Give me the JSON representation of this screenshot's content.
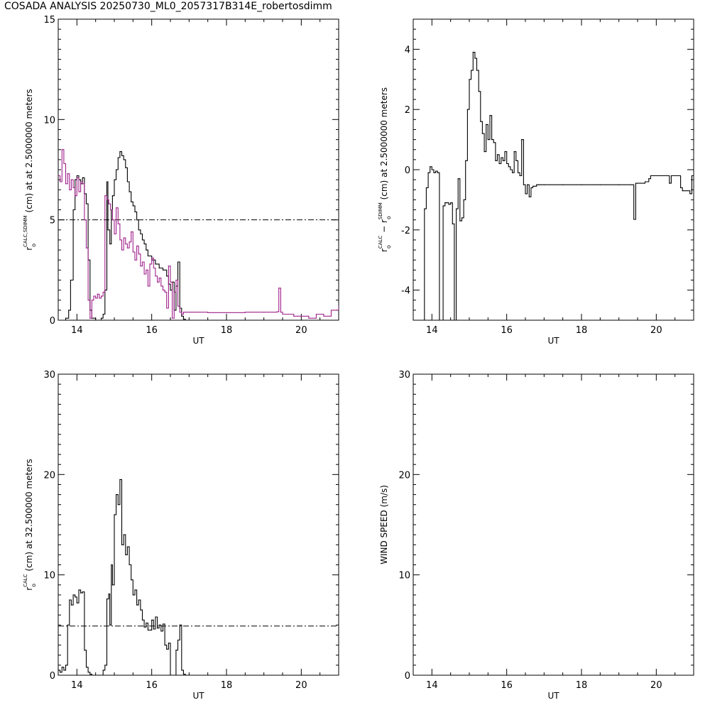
{
  "page": {
    "title": "COSADA ANALYSIS 20250730_ML0_2057317B314E_robertosdimm"
  },
  "colors": {
    "axis": "#000000",
    "series_black": "#000000",
    "series_magenta": "#a0208a"
  },
  "chart_data": [
    {
      "id": "panel-1",
      "type": "line",
      "xlabel": "UT",
      "ylabel_parts": [
        "r",
        "o",
        "CALC,SDIMM",
        " (cm) at  at 2.5000000 meters"
      ],
      "xlim": [
        13.5,
        21.0
      ],
      "ylim": [
        0,
        15
      ],
      "xticks": [
        14,
        16,
        18,
        20
      ],
      "yticks": [
        0,
        5,
        10,
        15
      ],
      "reference_line": 5,
      "series": [
        {
          "color": "black",
          "x": [
            13.5,
            13.7,
            13.78,
            13.83,
            13.9,
            13.95,
            14.0,
            14.05,
            14.1,
            14.15,
            14.2,
            14.25,
            14.3,
            14.35,
            14.4,
            14.5,
            14.6,
            14.65,
            14.7,
            14.75,
            14.8,
            14.83,
            14.88,
            14.92,
            14.95,
            15.0,
            15.05,
            15.1,
            15.15,
            15.2,
            15.25,
            15.3,
            15.35,
            15.4,
            15.45,
            15.5,
            15.55,
            15.6,
            15.65,
            15.7,
            15.75,
            15.8,
            15.85,
            15.9,
            16.0,
            16.1,
            16.2,
            16.3,
            16.4,
            16.45,
            16.5,
            16.55,
            16.6,
            16.65,
            16.7,
            16.75,
            16.8,
            16.85,
            16.9
          ],
          "y": [
            0,
            0.1,
            0.5,
            2.0,
            5.5,
            7.0,
            7.2,
            7.0,
            6.8,
            7.1,
            6.3,
            5.8,
            3.0,
            0.5,
            0.1,
            0,
            0,
            0.1,
            0.3,
            1.5,
            6.9,
            4.5,
            3.8,
            5.5,
            6.2,
            7.0,
            7.5,
            8.1,
            8.4,
            8.2,
            8.0,
            7.6,
            6.9,
            6.4,
            5.9,
            5.7,
            5.4,
            5.0,
            4.5,
            4.3,
            4.0,
            3.8,
            3.5,
            3.2,
            3.0,
            2.8,
            2.6,
            2.5,
            2.2,
            1.8,
            1.5,
            1.9,
            0.5,
            1.7,
            2.9,
            0.6,
            0.2,
            0.05,
            0
          ]
        },
        {
          "color": "magenta",
          "x": [
            13.5,
            13.55,
            13.6,
            13.65,
            13.7,
            13.75,
            13.8,
            13.85,
            13.9,
            13.95,
            14.0,
            14.05,
            14.1,
            14.15,
            14.2,
            14.25,
            14.3,
            14.35,
            14.4,
            14.45,
            14.5,
            14.55,
            14.6,
            14.65,
            14.7,
            14.75,
            14.8,
            14.85,
            14.9,
            14.95,
            15.0,
            15.05,
            15.1,
            15.15,
            15.2,
            15.25,
            15.3,
            15.35,
            15.4,
            15.45,
            15.5,
            15.55,
            15.6,
            15.65,
            15.7,
            15.75,
            15.8,
            15.85,
            15.9,
            15.95,
            16.0,
            16.05,
            16.1,
            16.15,
            16.2,
            16.25,
            16.3,
            16.35,
            16.4,
            16.45,
            16.5,
            16.55,
            16.6,
            16.65,
            16.7,
            16.75,
            16.8,
            16.85,
            16.9,
            17.0,
            17.5,
            18.0,
            18.5,
            19.0,
            19.35,
            19.4,
            19.45,
            19.5,
            19.8,
            20.0,
            20.2,
            20.4,
            20.6,
            20.8,
            21.0
          ],
          "y": [
            7.2,
            6.9,
            8.5,
            7.8,
            6.8,
            7.3,
            6.5,
            7.0,
            6.6,
            6.2,
            7.1,
            6.4,
            6.9,
            6.8,
            5.0,
            3.6,
            1.0,
            0.1,
            1.0,
            1.2,
            1.1,
            1.3,
            1.1,
            1.2,
            1.4,
            6.2,
            6.0,
            5.8,
            5.5,
            5.0,
            4.3,
            5.6,
            4.8,
            4.0,
            3.5,
            4.1,
            3.8,
            3.6,
            3.9,
            4.4,
            3.4,
            3.0,
            3.7,
            3.3,
            2.7,
            2.9,
            2.3,
            2.5,
            1.7,
            2.8,
            3.1,
            2.6,
            2.2,
            1.9,
            2.1,
            1.7,
            1.5,
            1.4,
            0.6,
            2.7,
            1.9,
            0.1,
            1.4,
            2.0,
            0.7,
            0.4,
            0.3,
            0.4,
            0.4,
            0.4,
            0.38,
            0.38,
            0.4,
            0.4,
            0.42,
            1.6,
            0.4,
            0.3,
            0.2,
            0.2,
            0.1,
            0.3,
            0.2,
            0.5,
            0.7
          ]
        }
      ]
    },
    {
      "id": "panel-2",
      "type": "line",
      "xlabel": "UT",
      "ylabel_parts": [
        "r",
        "o",
        "CALC",
        "  −  r",
        "o",
        "SDIMM",
        " (cm) at 2.5000000 meters"
      ],
      "xlim": [
        13.5,
        21.0
      ],
      "ylim": [
        -5,
        5
      ],
      "xticks": [
        14,
        16,
        18,
        20
      ],
      "yticks": [
        -4,
        -2,
        0,
        2,
        4
      ],
      "series": [
        {
          "color": "black",
          "x": [
            13.5,
            13.78,
            13.8,
            13.85,
            13.9,
            13.95,
            14.0,
            14.05,
            14.1,
            14.15,
            14.2,
            14.25,
            14.3,
            14.35,
            14.4,
            14.45,
            14.5,
            14.55,
            14.6,
            14.65,
            14.7,
            14.75,
            14.8,
            14.85,
            14.9,
            14.95,
            15.0,
            15.05,
            15.1,
            15.15,
            15.2,
            15.25,
            15.3,
            15.35,
            15.4,
            15.45,
            15.5,
            15.55,
            15.6,
            15.65,
            15.7,
            15.75,
            15.8,
            15.85,
            15.9,
            15.95,
            16.0,
            16.05,
            16.1,
            16.15,
            16.2,
            16.25,
            16.3,
            16.35,
            16.4,
            16.45,
            16.5,
            16.55,
            16.6,
            16.65,
            16.7,
            16.75,
            16.8,
            16.85,
            16.9,
            17.0,
            17.5,
            18.0,
            18.5,
            19.0,
            19.35,
            19.4,
            19.45,
            19.5,
            19.7,
            19.8,
            19.85,
            20.0,
            20.3,
            20.35,
            20.4,
            20.6,
            20.65,
            20.7,
            20.9,
            20.95,
            21.0
          ],
          "y": [
            -5,
            -5,
            -1.3,
            -0.6,
            -0.1,
            0.1,
            0.0,
            -0.1,
            -0.05,
            -0.1,
            -5,
            -5,
            -1.2,
            -1.1,
            -1.1,
            -1.15,
            -1.1,
            -1.8,
            -5,
            -1.3,
            -0.3,
            -1.7,
            -1.6,
            -1.0,
            0.3,
            2.0,
            3.0,
            3.3,
            3.9,
            3.7,
            3.3,
            2.6,
            1.6,
            1.2,
            0.6,
            1.5,
            1.0,
            1.8,
            1.0,
            0.9,
            0.3,
            0.5,
            0.2,
            0.4,
            0.3,
            0.6,
            0.2,
            0.1,
            0.0,
            -0.1,
            0.6,
            0.3,
            -0.1,
            -0.2,
            1.0,
            -0.5,
            -0.8,
            -0.5,
            -0.9,
            -0.6,
            -0.55,
            -0.55,
            -0.5,
            -0.5,
            -0.5,
            -0.5,
            -0.5,
            -0.5,
            -0.5,
            -0.5,
            -0.5,
            -1.65,
            -0.45,
            -0.45,
            -0.4,
            -0.3,
            -0.2,
            -0.2,
            -0.2,
            -0.45,
            -0.2,
            -0.2,
            -0.6,
            -0.7,
            -0.8,
            -0.2,
            -0.2
          ]
        }
      ]
    },
    {
      "id": "panel-3",
      "type": "line",
      "xlabel": "UT",
      "ylabel_parts": [
        "r",
        "o",
        "CALC",
        " (cm) at 32.500000 meters"
      ],
      "xlim": [
        13.5,
        21.0
      ],
      "ylim": [
        0,
        30
      ],
      "xticks": [
        14,
        16,
        18,
        20
      ],
      "yticks": [
        0,
        10,
        20,
        30
      ],
      "reference_line": 4.9,
      "series": [
        {
          "color": "black",
          "x": [
            13.5,
            13.55,
            13.6,
            13.65,
            13.7,
            13.75,
            13.8,
            13.85,
            13.9,
            13.95,
            14.0,
            14.05,
            14.1,
            14.15,
            14.2,
            14.25,
            14.3,
            14.35,
            14.4,
            14.5,
            14.6,
            14.7,
            14.75,
            14.8,
            14.85,
            14.88,
            14.92,
            14.95,
            15.0,
            15.05,
            15.1,
            15.15,
            15.2,
            15.25,
            15.3,
            15.35,
            15.4,
            15.45,
            15.5,
            15.55,
            15.6,
            15.65,
            15.7,
            15.75,
            15.8,
            15.85,
            15.9,
            16.0,
            16.05,
            16.1,
            16.15,
            16.2,
            16.25,
            16.3,
            16.35,
            16.4,
            16.45,
            16.5,
            16.55,
            16.6,
            16.65,
            16.7,
            16.75,
            16.8,
            16.85,
            16.9
          ],
          "y": [
            0.5,
            0.3,
            0.8,
            0.5,
            1.0,
            5.0,
            7.5,
            7.0,
            8.0,
            7.8,
            7.2,
            8.5,
            8.2,
            8.3,
            2.5,
            0.8,
            0.3,
            0.1,
            0,
            0,
            0,
            0.5,
            1.0,
            7.6,
            8.1,
            5.0,
            11.0,
            9.0,
            16.0,
            18.0,
            17.0,
            19.5,
            13.0,
            14.0,
            12.0,
            12.8,
            11.0,
            9.5,
            8.0,
            8.5,
            7.0,
            7.5,
            6.5,
            5.5,
            4.8,
            5.2,
            4.5,
            5.5,
            4.6,
            5.8,
            4.7,
            5.0,
            4.4,
            5.1,
            3.0,
            2.6,
            3.2,
            0,
            0,
            0,
            2.5,
            3.5,
            5.0,
            0.5,
            0.1,
            0
          ]
        }
      ]
    },
    {
      "id": "panel-4",
      "type": "line",
      "xlabel": "UT",
      "ylabel_parts": [
        "WIND SPEED (m/s)"
      ],
      "xlim": [
        13.5,
        21.0
      ],
      "ylim": [
        0,
        30
      ],
      "xticks": [
        14,
        16,
        18,
        20
      ],
      "yticks": [
        0,
        10,
        20,
        30
      ],
      "series": []
    }
  ]
}
